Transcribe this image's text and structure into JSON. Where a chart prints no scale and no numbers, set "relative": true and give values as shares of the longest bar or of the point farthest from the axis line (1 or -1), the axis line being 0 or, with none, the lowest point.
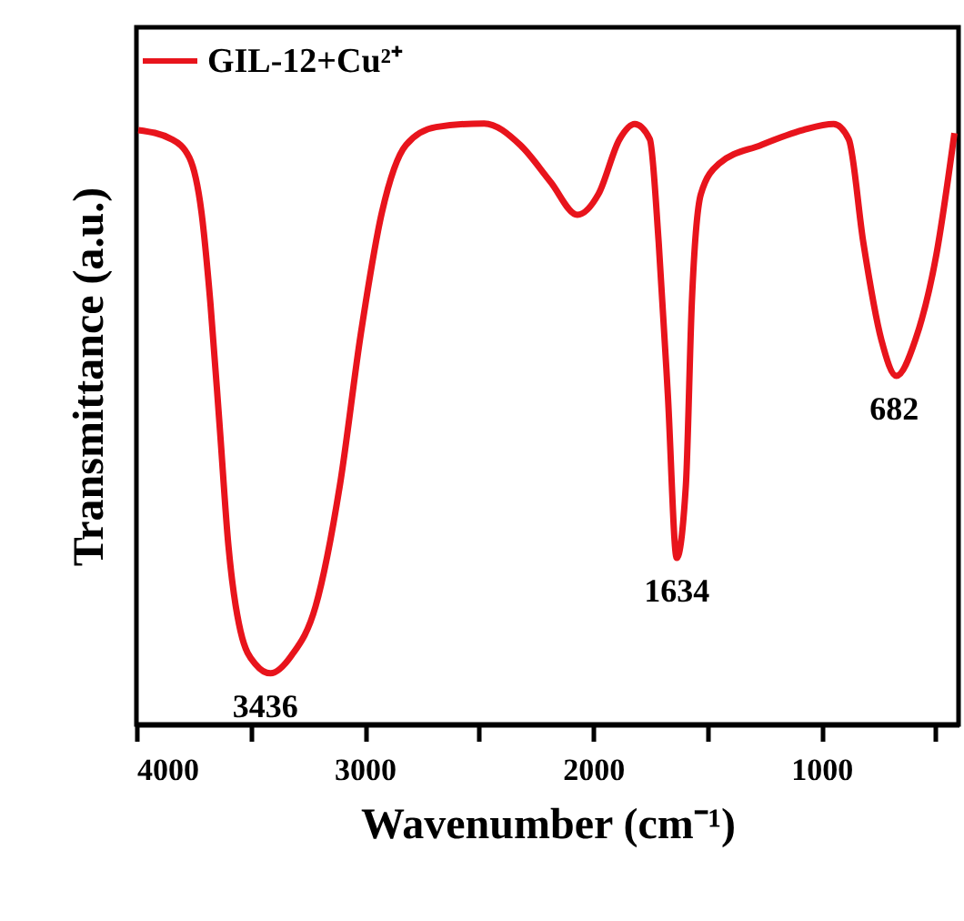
{
  "chart_data": {
    "type": "line",
    "relative": true,
    "xlabel": "Wavenumber (cm⁻¹)",
    "ylabel": "Transmittance (a.u.)",
    "x": [
      3992,
      3847,
      3768,
      3715,
      3676,
      3636,
      3597,
      3544,
      3478,
      3413,
      3320,
      3215,
      3109,
      3017,
      2925,
      2820,
      2688,
      2477,
      2319,
      2187,
      2069,
      1976,
      1884,
      1818,
      1752,
      1713,
      1673,
      1634,
      1594,
      1568,
      1528,
      1449,
      1265,
      1081,
      947,
      881,
      817,
      738,
      672,
      589,
      497,
      418
    ],
    "series": [
      {
        "name": "GIL-12+Cu²⁺",
        "color": "#e8141c",
        "values": [
          0.989,
          0.974,
          0.943,
          0.852,
          0.701,
          0.499,
          0.297,
          0.155,
          0.1,
          0.085,
          0.115,
          0.197,
          0.398,
          0.651,
          0.852,
          0.964,
          0.994,
          1,
          0.964,
          0.903,
          0.848,
          0.883,
          0.974,
          0.999,
          0.974,
          0.802,
          0.549,
          0.277,
          0.398,
          0.701,
          0.883,
          0.933,
          0.964,
          0.989,
          0.999,
          0.974,
          0.802,
          0.64,
          0.58,
          0.64,
          0.782,
          0.984
        ]
      }
    ],
    "xlim": [
      4000,
      400
    ],
    "xticks": [
      4000,
      {
        "value": 3500,
        "label": null
      },
      3000,
      {
        "value": 2500,
        "label": null
      },
      2000,
      {
        "value": 1500,
        "label": null
      },
      1000,
      {
        "value": 500,
        "label": null
      }
    ],
    "annotations": [
      {
        "text": "3436",
        "x": 3436,
        "y": 0.085
      },
      {
        "text": "1634",
        "x": 1634,
        "y": 0.277
      },
      {
        "text": "682",
        "x": 682,
        "y": 0.58
      }
    ],
    "legend": "top left",
    "marker": "none",
    "line_style": "solid"
  }
}
